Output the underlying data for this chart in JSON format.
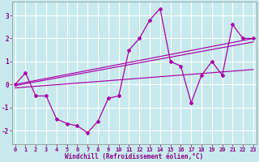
{
  "xlabel": "Windchill (Refroidissement éolien,°C)",
  "background_color": "#c8eaee",
  "grid_color": "#ffffff",
  "line_color": "#aa00aa",
  "x_hours": [
    0,
    1,
    2,
    3,
    4,
    5,
    6,
    7,
    8,
    9,
    10,
    11,
    12,
    13,
    14,
    15,
    16,
    17,
    18,
    19,
    20,
    21,
    22,
    23
  ],
  "windchill": [
    0.0,
    0.5,
    -0.5,
    -0.5,
    -1.5,
    -1.7,
    -1.8,
    -2.1,
    -1.6,
    -0.6,
    -0.5,
    1.5,
    2.0,
    2.8,
    3.3,
    1.0,
    0.8,
    -0.8,
    0.4,
    1.0,
    0.4,
    2.6,
    2.0,
    2.0
  ],
  "trend1_y": [
    0.0,
    2.0
  ],
  "trend2_y": [
    -0.15,
    0.65
  ],
  "trend3_y": [
    -0.05,
    1.85
  ],
  "ylim": [
    -2.6,
    3.6
  ],
  "xlim_lo": 0,
  "xlim_hi": 23,
  "yticks": [
    -2,
    -1,
    0,
    1,
    2,
    3
  ],
  "xticks": [
    0,
    1,
    2,
    3,
    4,
    5,
    6,
    7,
    8,
    9,
    10,
    11,
    12,
    13,
    14,
    15,
    16,
    17,
    18,
    19,
    20,
    21,
    22,
    23
  ],
  "spine_color": "#888888",
  "tick_color": "#880088",
  "xlabel_color": "#880088",
  "tick_fontsize": 5.0,
  "xlabel_fontsize": 5.5
}
